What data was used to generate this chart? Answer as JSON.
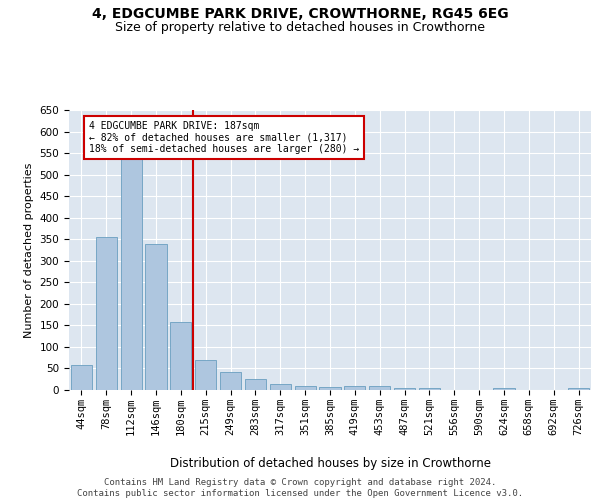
{
  "title": "4, EDGCUMBE PARK DRIVE, CROWTHORNE, RG45 6EG",
  "subtitle": "Size of property relative to detached houses in Crowthorne",
  "xlabel": "Distribution of detached houses by size in Crowthorne",
  "ylabel": "Number of detached properties",
  "bar_color": "#aec6df",
  "bar_edge_color": "#6a9fc0",
  "bg_color": "#dde6f0",
  "grid_color": "#ffffff",
  "categories": [
    "44sqm",
    "78sqm",
    "112sqm",
    "146sqm",
    "180sqm",
    "215sqm",
    "249sqm",
    "283sqm",
    "317sqm",
    "351sqm",
    "385sqm",
    "419sqm",
    "453sqm",
    "487sqm",
    "521sqm",
    "556sqm",
    "590sqm",
    "624sqm",
    "658sqm",
    "692sqm",
    "726sqm"
  ],
  "values": [
    58,
    355,
    540,
    338,
    157,
    70,
    42,
    25,
    15,
    10,
    8,
    9,
    10,
    4,
    4,
    0,
    0,
    5,
    0,
    0,
    5
  ],
  "ylim": [
    0,
    650
  ],
  "yticks": [
    0,
    50,
    100,
    150,
    200,
    250,
    300,
    350,
    400,
    450,
    500,
    550,
    600,
    650
  ],
  "vline_color": "#cc0000",
  "vline_pos": 4.5,
  "annotation_text": "4 EDGCUMBE PARK DRIVE: 187sqm\n← 82% of detached houses are smaller (1,317)\n18% of semi-detached houses are larger (280) →",
  "footer": "Contains HM Land Registry data © Crown copyright and database right 2024.\nContains public sector information licensed under the Open Government Licence v3.0.",
  "title_fontsize": 10,
  "subtitle_fontsize": 9,
  "xlabel_fontsize": 8.5,
  "ylabel_fontsize": 8,
  "tick_fontsize": 7.5,
  "footer_fontsize": 6.5
}
